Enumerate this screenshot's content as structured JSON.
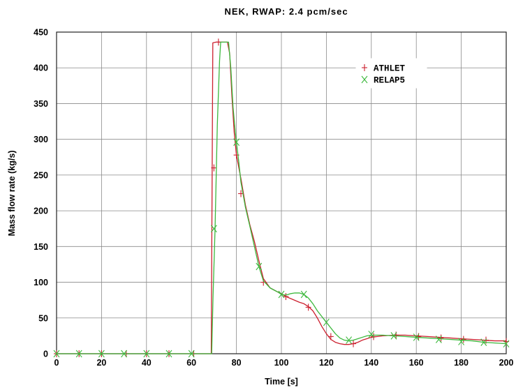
{
  "chart_data": {
    "type": "line",
    "title": "NEK, RWAP: 2.4 pcm/sec",
    "xlabel": "Time [s]",
    "ylabel": "Mass flow rate (kg/s)",
    "xlim": [
      0,
      200
    ],
    "ylim": [
      0,
      450
    ],
    "xticks": [
      0,
      20,
      40,
      60,
      80,
      100,
      120,
      140,
      160,
      180,
      200
    ],
    "yticks": [
      0,
      50,
      100,
      150,
      200,
      250,
      300,
      350,
      400,
      450
    ],
    "grid": true,
    "legend_position": "top-right",
    "series": [
      {
        "name": "ATHLET",
        "color": "#cc1f2e",
        "marker": "plus",
        "x": [
          0,
          68.8,
          69.5,
          71,
          76,
          77,
          78,
          79,
          80,
          82,
          84,
          86,
          88,
          90,
          92,
          95,
          98,
          100,
          102,
          105,
          108,
          110,
          112,
          114,
          116,
          118,
          120,
          122,
          124,
          126,
          128,
          130,
          132,
          134,
          136,
          138,
          140,
          145,
          150,
          155,
          160,
          165,
          170,
          175,
          180,
          185,
          190,
          195,
          200
        ],
        "y": [
          0,
          0,
          435,
          436,
          436,
          420,
          360,
          310,
          278,
          245,
          208,
          180,
          157,
          130,
          105,
          92,
          87,
          84,
          80,
          76,
          72,
          70,
          66,
          60,
          50,
          38,
          28,
          20,
          16,
          14,
          13,
          13,
          14,
          16,
          19,
          21,
          23,
          25,
          26,
          26,
          25,
          24,
          23,
          22,
          21,
          20,
          19,
          18,
          18
        ],
        "marker_x": [
          0,
          10,
          20,
          31,
          40,
          50,
          61,
          70,
          72,
          80,
          82,
          92,
          102,
          112,
          122,
          132,
          141,
          151,
          161,
          171,
          181,
          191,
          200
        ],
        "marker_y": [
          0,
          0,
          0,
          0,
          0,
          0,
          0,
          260,
          436,
          278,
          224,
          100,
          80,
          65,
          24,
          14,
          24,
          26,
          24,
          22,
          20,
          19,
          17
        ]
      },
      {
        "name": "RELAP5",
        "color": "#3cb83c",
        "marker": "x",
        "x": [
          0,
          69,
          69.6,
          70.5,
          71.5,
          72.5,
          73,
          76.5,
          77.5,
          78.5,
          79.5,
          80,
          81,
          82,
          84,
          86,
          88,
          90,
          92,
          95,
          98,
          100,
          102,
          104,
          106,
          108,
          110,
          112,
          114,
          116,
          118,
          120,
          122,
          124,
          126,
          128,
          130,
          132,
          134,
          136,
          138,
          140,
          145,
          150,
          155,
          160,
          165,
          170,
          175,
          180,
          185,
          190,
          195,
          200
        ],
        "y": [
          0,
          0,
          80,
          175,
          320,
          410,
          436,
          436,
          400,
          345,
          310,
          296,
          270,
          240,
          205,
          178,
          150,
          122,
          102,
          92,
          87,
          83,
          82,
          84,
          85,
          85,
          83,
          78,
          70,
          60,
          52,
          44,
          36,
          28,
          22,
          19,
          18,
          19,
          21,
          23,
          25,
          26,
          26,
          25,
          24,
          23,
          22,
          21,
          20,
          19,
          18,
          16,
          15,
          14
        ],
        "marker_x": [
          0,
          10,
          20,
          30,
          40,
          50,
          60,
          70,
          80,
          90,
          100,
          110,
          120,
          130,
          140,
          150,
          160,
          170,
          180,
          190,
          200
        ],
        "marker_y": [
          0,
          0,
          0,
          0,
          0,
          0,
          0,
          175,
          296,
          122,
          83,
          83,
          44,
          19,
          27,
          25,
          23,
          20,
          17,
          16,
          14
        ]
      }
    ]
  }
}
